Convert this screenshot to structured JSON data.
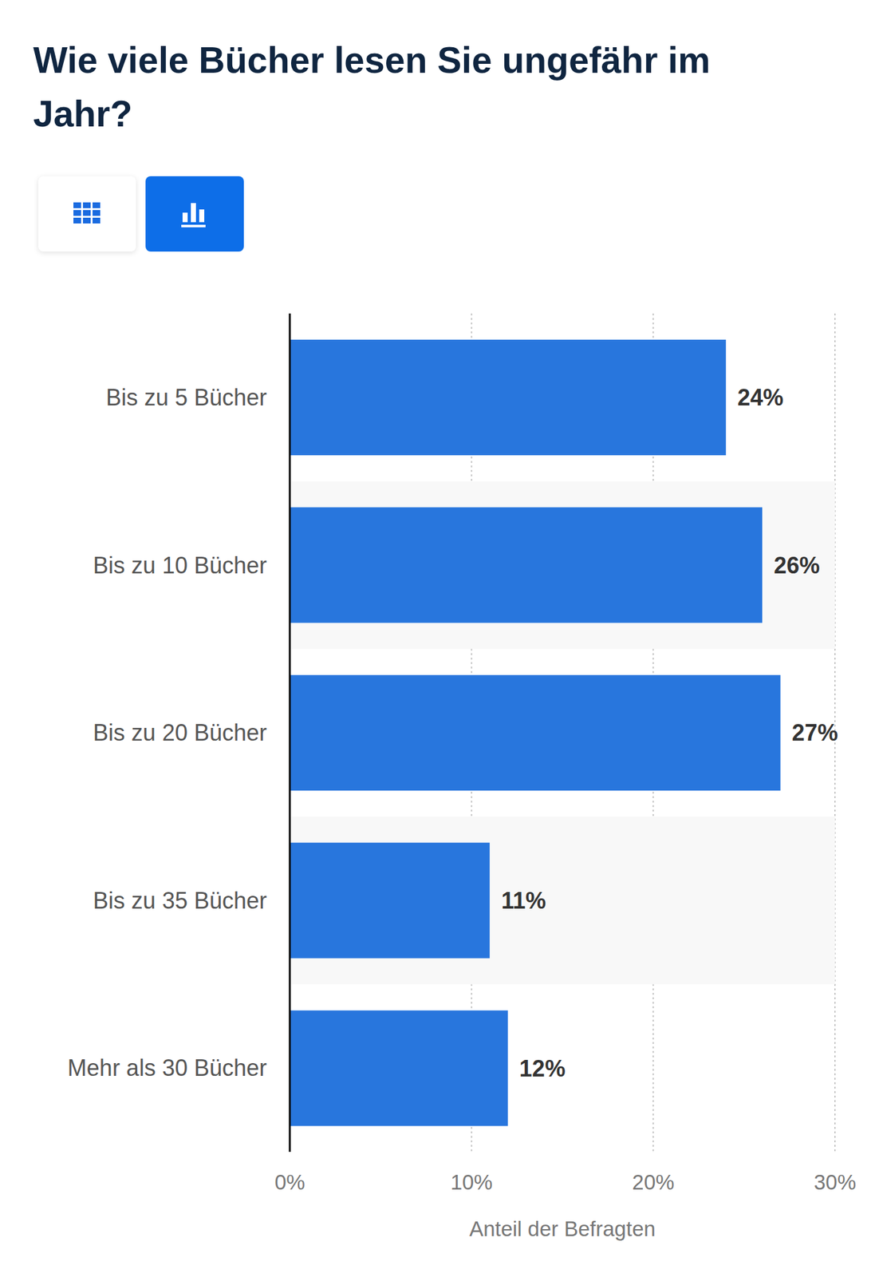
{
  "chart_data": {
    "type": "bar",
    "title": "Wie viele Bücher lesen Sie ungefähr im Jahr?",
    "orientation": "horizontal",
    "categories": [
      "Bis zu 5 Bücher",
      "Bis zu 10 Bücher",
      "Bis zu 20 Bücher",
      "Bis zu 35 Bücher",
      "Mehr als 30 Bücher"
    ],
    "values": [
      24,
      26,
      27,
      11,
      12
    ],
    "value_labels": [
      "24%",
      "26%",
      "27%",
      "11%",
      "12%"
    ],
    "data_labels": true,
    "color": "#2876dd",
    "x_label": "Anteil der Befragten",
    "xlim": [
      0,
      30
    ],
    "xticks": [
      {
        "value": 0,
        "label": "0%"
      },
      {
        "value": 10,
        "label": "10%"
      },
      {
        "value": 20,
        "label": "20%"
      },
      {
        "value": 30,
        "label": "30%"
      }
    ],
    "grid": true
  }
}
